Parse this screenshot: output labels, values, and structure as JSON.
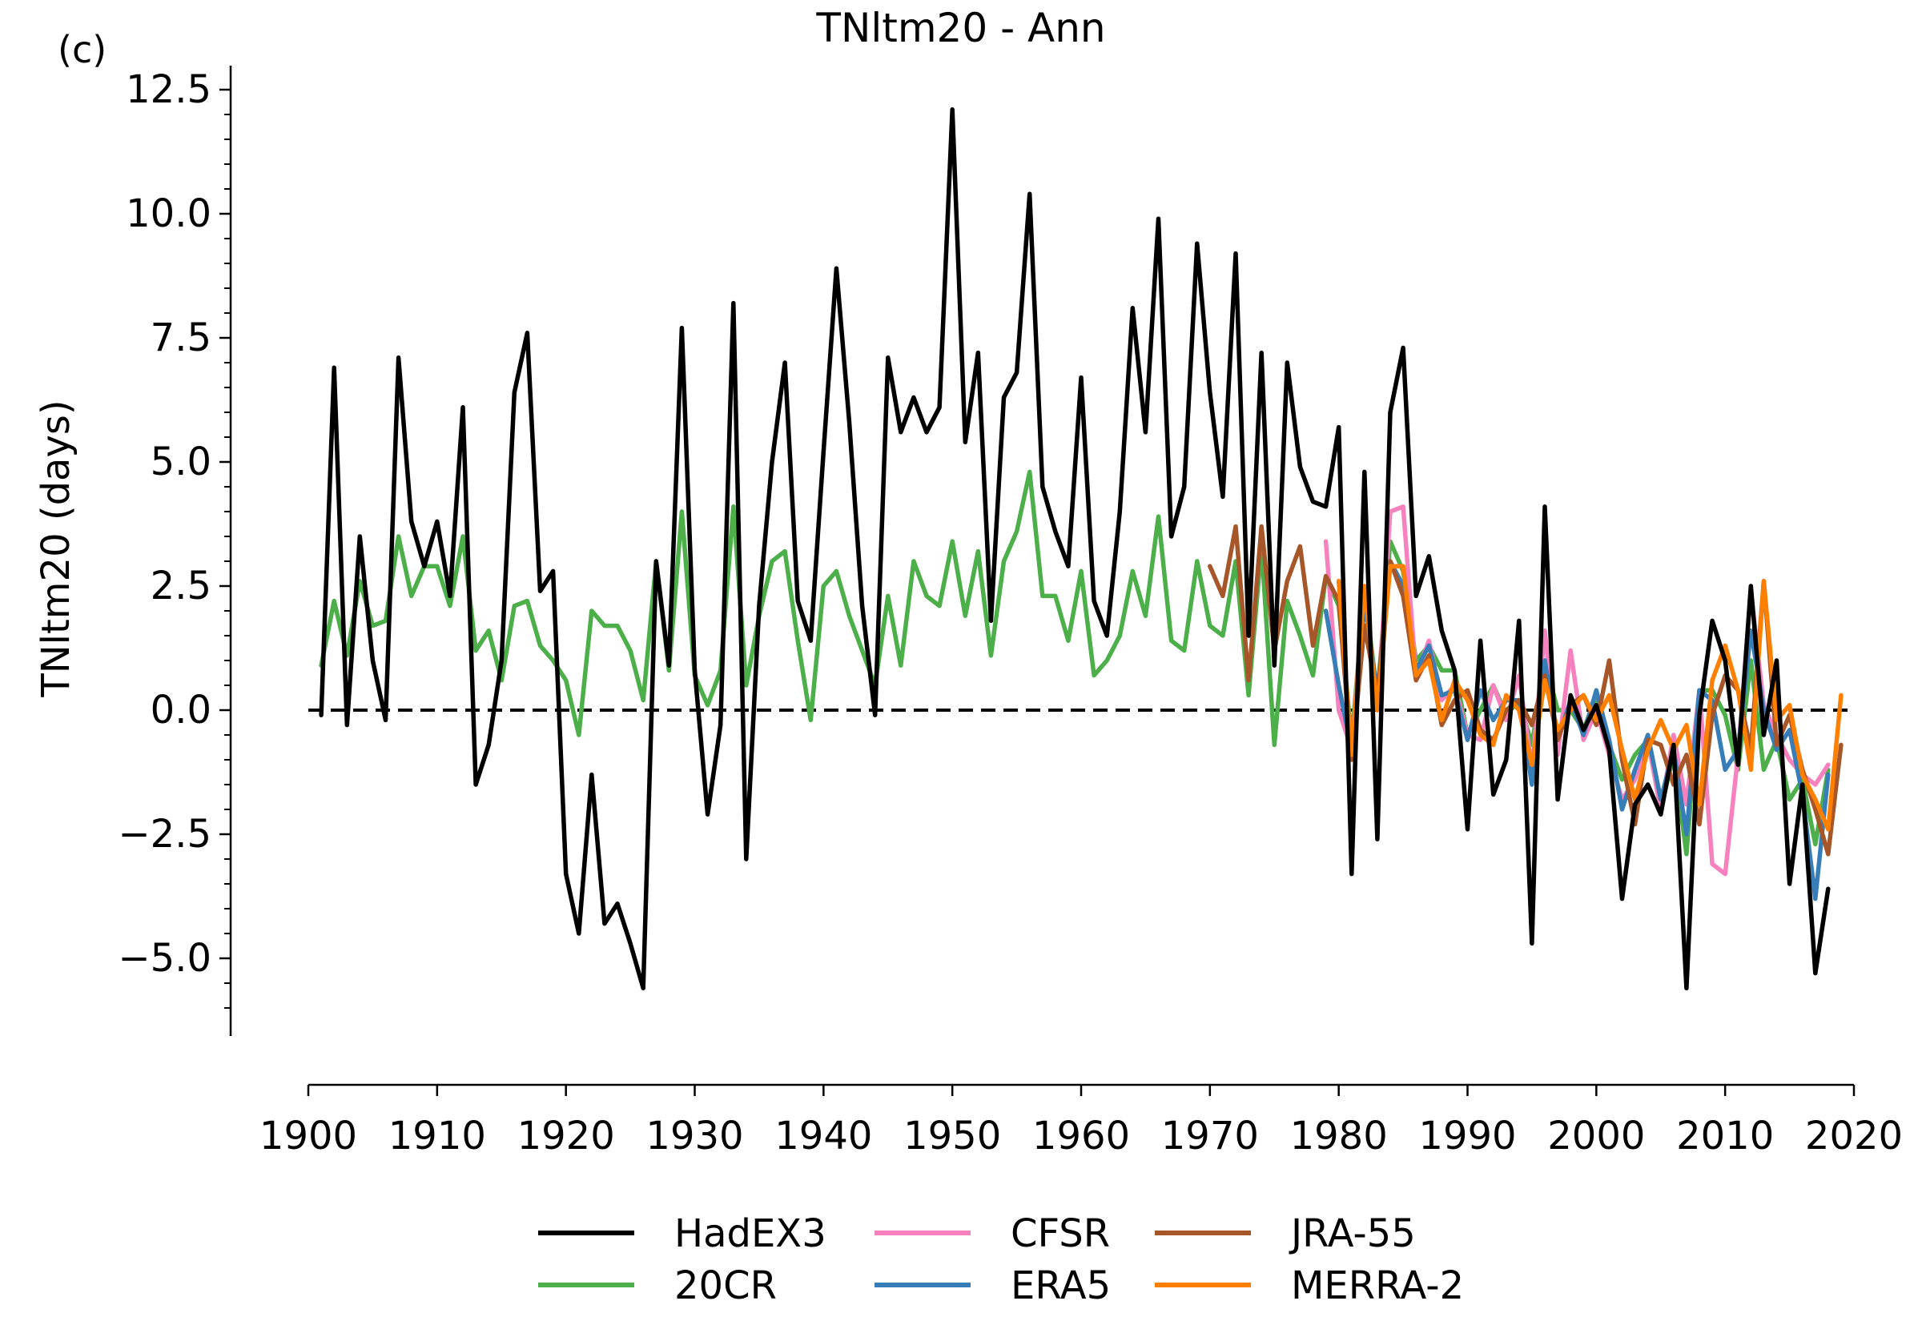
{
  "chart_data": {
    "type": "line",
    "panel_label": "(c)",
    "title": "TNltm20 - Ann",
    "xlabel": "",
    "ylabel": "TNltm20 (days)",
    "xlim": [
      1900,
      2020
    ],
    "ylim": [
      -6.5,
      13
    ],
    "x_ticks": [
      1900,
      1910,
      1920,
      1930,
      1940,
      1950,
      1960,
      1970,
      1980,
      1990,
      2000,
      2010,
      2020
    ],
    "y_ticks": [
      -5.0,
      -2.5,
      0.0,
      2.5,
      5.0,
      7.5,
      10.0,
      12.5
    ],
    "y_tick_labels": [
      "−5.0",
      "−2.5",
      "0.0",
      "2.5",
      "5.0",
      "7.5",
      "10.0",
      "12.5"
    ],
    "x_tick_labels": [
      "1900",
      "1910",
      "1920",
      "1930",
      "1940",
      "1950",
      "1960",
      "1970",
      "1980",
      "1990",
      "2000",
      "2010",
      "2020"
    ],
    "reference_line": 0.0,
    "legend_position": "bottom-center",
    "series": [
      {
        "name": "20CR",
        "color": "#4daf4a",
        "start": 1901,
        "values": [
          0.9,
          2.2,
          1.1,
          2.6,
          1.7,
          1.8,
          3.5,
          2.3,
          2.9,
          2.9,
          2.1,
          3.5,
          1.2,
          1.6,
          0.6,
          2.1,
          2.2,
          1.3,
          1.0,
          0.6,
          -0.5,
          2.0,
          1.7,
          1.7,
          1.2,
          0.2,
          3.0,
          0.8,
          4.0,
          0.7,
          0.1,
          0.8,
          4.1,
          0.5,
          1.9,
          3.0,
          3.2,
          1.4,
          -0.2,
          2.5,
          2.8,
          1.9,
          1.2,
          0.5,
          2.3,
          0.9,
          3.0,
          2.3,
          2.1,
          3.4,
          1.9,
          3.2,
          1.1,
          3.0,
          3.6,
          4.8,
          2.3,
          2.3,
          1.4,
          2.8,
          0.7,
          1.0,
          1.5,
          2.8,
          1.9,
          3.9,
          1.4,
          1.2,
          3.0,
          1.7,
          1.5,
          3.0,
          0.3,
          3.3,
          -0.7,
          2.2,
          1.5,
          0.7,
          2.7,
          2.1,
          -0.6,
          2.4,
          0.3,
          3.4,
          2.8,
          1.0,
          1.3,
          0.8,
          0.8,
          -0.5,
          0.0,
          0.5,
          -0.1,
          0.2,
          -0.7,
          1.0,
          0.0,
          0.0,
          -0.4,
          0.3,
          -0.7,
          -1.4,
          -0.9,
          -0.6,
          -2.0,
          -0.9,
          -2.9,
          0.4,
          0.4,
          -0.1,
          -1.2,
          1.0,
          -1.2,
          -0.6,
          -1.8,
          -1.4,
          -2.7,
          -1.2
        ]
      },
      {
        "name": "CFSR",
        "color": "#f781bf",
        "start": 1979,
        "values": [
          3.4,
          0.0,
          -0.8,
          2.5,
          0.0,
          4.0,
          4.1,
          0.7,
          1.4,
          0.2,
          0.5,
          -0.5,
          -0.6,
          0.5,
          -0.2,
          0.7,
          -1.2,
          1.6,
          -0.9,
          1.2,
          -0.6,
          0.0,
          -0.9,
          -1.8,
          -1.4,
          -0.6,
          -2.0,
          -0.5,
          -1.9,
          0.4,
          -3.1,
          -3.3,
          -0.9,
          2.4,
          0.1,
          -0.5,
          -1.0,
          -1.3,
          -1.5,
          -1.1
        ]
      },
      {
        "name": "ERA5",
        "color": "#377eb8",
        "start": 1979,
        "values": [
          2.0,
          0.5,
          -0.8,
          2.2,
          0.3,
          3.0,
          2.5,
          0.8,
          1.3,
          0.3,
          0.4,
          -0.6,
          0.4,
          -0.2,
          0.2,
          0.2,
          -1.5,
          1.0,
          -0.6,
          0.2,
          -0.5,
          0.4,
          -0.6,
          -2.0,
          -1.2,
          -0.5,
          -1.8,
          -0.8,
          -2.5,
          0.4,
          0.2,
          -1.2,
          -0.8,
          1.6,
          0.0,
          -0.8,
          -0.4,
          -1.7,
          -3.8,
          -1.3
        ]
      },
      {
        "name": "JRA-55",
        "color": "#a65628",
        "start": 1970,
        "values": [
          2.9,
          2.3,
          3.7,
          0.6,
          3.7,
          1.2,
          2.6,
          3.3,
          1.3,
          2.7,
          2.2,
          -1.0,
          1.7,
          0.3,
          3.0,
          2.3,
          0.6,
          1.1,
          -0.3,
          0.2,
          0.4,
          -0.4,
          -0.6,
          0.0,
          0.2,
          -0.3,
          0.7,
          -0.6,
          0.1,
          0.3,
          -0.3,
          1.0,
          -1.0,
          -2.3,
          -0.6,
          -0.7,
          -1.5,
          -0.9,
          -2.3,
          -0.1,
          0.7,
          0.4,
          -0.8,
          2.6,
          -0.7,
          -0.1,
          -1.2,
          -2.0,
          -2.9,
          -0.7
        ]
      },
      {
        "name": "MERRA-2",
        "color": "#ff7f00",
        "start": 1980,
        "values": [
          2.6,
          -0.9,
          2.5,
          0.0,
          2.9,
          2.9,
          0.7,
          1.0,
          -0.2,
          0.6,
          0.2,
          -0.5,
          -0.7,
          0.3,
          0.0,
          -1.1,
          0.6,
          -0.4,
          0.0,
          0.3,
          -0.2,
          0.3,
          -0.8,
          -1.8,
          -0.8,
          -0.2,
          -0.8,
          -0.3,
          -1.9,
          0.6,
          1.3,
          0.4,
          -1.2,
          2.6,
          -0.2,
          0.1,
          -1.3,
          -1.8,
          -2.4,
          0.3
        ]
      },
      {
        "name": "HadEX3",
        "color": "#000000",
        "start": 1901,
        "values": [
          -0.1,
          6.9,
          -0.3,
          3.5,
          1.0,
          -0.2,
          7.1,
          3.8,
          2.9,
          3.8,
          2.3,
          6.1,
          -1.5,
          -0.7,
          1.0,
          6.4,
          7.6,
          2.4,
          2.8,
          -3.3,
          -4.5,
          -1.3,
          -4.3,
          -3.9,
          -4.7,
          -5.6,
          3.0,
          0.9,
          7.7,
          0.8,
          -2.1,
          -0.3,
          8.2,
          -3.0,
          2.1,
          5.0,
          7.0,
          2.2,
          1.4,
          5.2,
          8.9,
          5.8,
          2.1,
          -0.1,
          7.1,
          5.6,
          6.3,
          5.6,
          6.1,
          12.1,
          5.4,
          7.2,
          1.8,
          6.3,
          6.8,
          10.4,
          4.5,
          3.6,
          2.9,
          6.7,
          2.2,
          1.5,
          4.0,
          8.1,
          5.6,
          9.9,
          3.5,
          4.5,
          9.4,
          6.4,
          4.3,
          9.2,
          1.5,
          7.2,
          0.9,
          7.0,
          4.9,
          4.2,
          4.1,
          5.7,
          -3.3,
          4.8,
          -2.6,
          6.0,
          7.3,
          2.3,
          3.1,
          1.6,
          0.8,
          -2.4,
          1.4,
          -1.7,
          -1.0,
          1.8,
          -4.7,
          4.1,
          -1.8,
          0.3,
          -0.4,
          0.1,
          -0.8,
          -3.8,
          -1.9,
          -1.5,
          -2.1,
          -0.7,
          -5.6,
          -0.1,
          1.8,
          1.0,
          -1.1,
          2.5,
          -0.5,
          1.0,
          -3.5,
          -1.5,
          -5.3,
          -3.6
        ]
      }
    ],
    "legend": [
      {
        "name": "HadEX3",
        "color": "#000000"
      },
      {
        "name": "20CR",
        "color": "#4daf4a"
      },
      {
        "name": "CFSR",
        "color": "#f781bf"
      },
      {
        "name": "ERA5",
        "color": "#377eb8"
      },
      {
        "name": "JRA-55",
        "color": "#a65628"
      },
      {
        "name": "MERRA-2",
        "color": "#ff7f00"
      }
    ]
  }
}
